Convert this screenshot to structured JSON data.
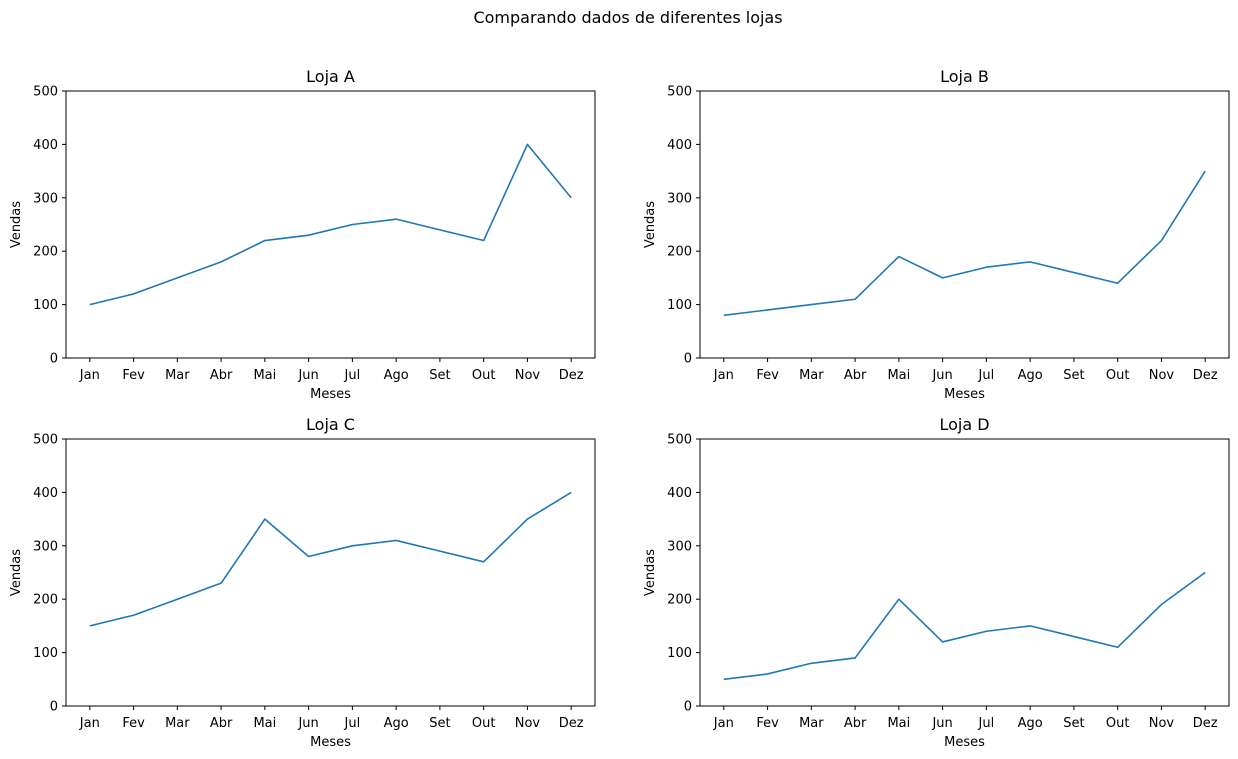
{
  "figure": {
    "suptitle": "Comparando dados de diferentes lojas"
  },
  "colors": {
    "line": "#1f77b4",
    "axis": "#000000",
    "background": "#ffffff"
  },
  "chart_data": [
    {
      "type": "line",
      "title": "Loja A",
      "xlabel": "Meses",
      "ylabel": "Vendas",
      "categories": [
        "Jan",
        "Fev",
        "Mar",
        "Abr",
        "Mai",
        "Jun",
        "Jul",
        "Ago",
        "Set",
        "Out",
        "Nov",
        "Dez"
      ],
      "values": [
        100,
        120,
        150,
        180,
        220,
        230,
        250,
        260,
        240,
        220,
        400,
        300
      ],
      "ylim": [
        0,
        500
      ],
      "yticks": [
        0,
        100,
        200,
        300,
        400,
        500
      ],
      "grid": false
    },
    {
      "type": "line",
      "title": "Loja B",
      "xlabel": "Meses",
      "ylabel": "Vendas",
      "categories": [
        "Jan",
        "Fev",
        "Mar",
        "Abr",
        "Mai",
        "Jun",
        "Jul",
        "Ago",
        "Set",
        "Out",
        "Nov",
        "Dez"
      ],
      "values": [
        80,
        90,
        100,
        110,
        190,
        150,
        170,
        180,
        160,
        140,
        220,
        350
      ],
      "ylim": [
        0,
        500
      ],
      "yticks": [
        0,
        100,
        200,
        300,
        400,
        500
      ],
      "grid": false
    },
    {
      "type": "line",
      "title": "Loja C",
      "xlabel": "Meses",
      "ylabel": "Vendas",
      "categories": [
        "Jan",
        "Fev",
        "Mar",
        "Abr",
        "Mai",
        "Jun",
        "Jul",
        "Ago",
        "Set",
        "Out",
        "Nov",
        "Dez"
      ],
      "values": [
        150,
        170,
        200,
        230,
        350,
        280,
        300,
        310,
        290,
        270,
        350,
        400
      ],
      "ylim": [
        0,
        500
      ],
      "yticks": [
        0,
        100,
        200,
        300,
        400,
        500
      ],
      "grid": false
    },
    {
      "type": "line",
      "title": "Loja D",
      "xlabel": "Meses",
      "ylabel": "Vendas",
      "categories": [
        "Jan",
        "Fev",
        "Mar",
        "Abr",
        "Mai",
        "Jun",
        "Jul",
        "Ago",
        "Set",
        "Out",
        "Nov",
        "Dez"
      ],
      "values": [
        50,
        60,
        80,
        90,
        200,
        120,
        140,
        150,
        130,
        110,
        190,
        250
      ],
      "ylim": [
        0,
        500
      ],
      "yticks": [
        0,
        100,
        200,
        300,
        400,
        500
      ],
      "grid": false
    }
  ]
}
